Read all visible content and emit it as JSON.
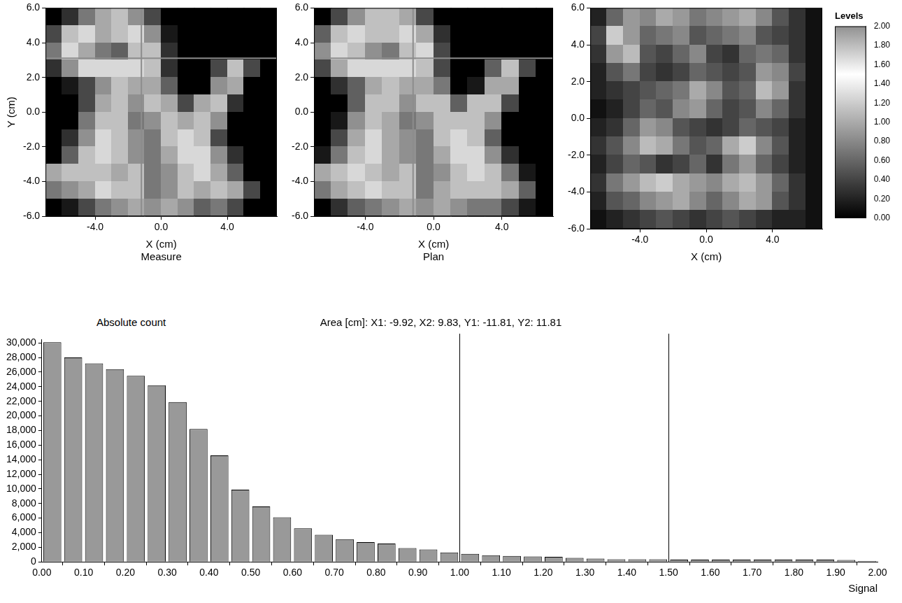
{
  "chart_data": [
    {
      "type": "heatmap",
      "caption": "Measure",
      "x_label": "X (cm)",
      "y_label": "Y (cm)",
      "xlim": [
        -7,
        7
      ],
      "ylim": [
        -6,
        6
      ],
      "xticks": [
        {
          "value": -4,
          "label": "-4.0"
        },
        {
          "value": 0,
          "label": "0.0"
        },
        {
          "value": 4,
          "label": "4.0"
        }
      ],
      "yticks": [
        {
          "value": -6,
          "label": "-6.0"
        },
        {
          "value": -4,
          "label": "-4.0"
        },
        {
          "value": -2,
          "label": "-2.0"
        },
        {
          "value": 0,
          "label": "0.0"
        },
        {
          "value": 2,
          "label": "2.0"
        },
        {
          "value": 4,
          "label": "4.0"
        },
        {
          "value": 6,
          "label": "6.0"
        }
      ],
      "crosshair": {
        "x": -1.2,
        "y": 3.1
      },
      "x": [
        -6.5,
        -5.5,
        -4.5,
        -3.5,
        -2.5,
        -1.5,
        -0.5,
        0.5,
        1.5,
        2.5,
        3.5,
        4.5,
        5.5,
        6.5
      ],
      "y": [
        5.5,
        4.5,
        3.5,
        2.5,
        1.5,
        0.5,
        -0.5,
        -1.5,
        -2.5,
        -3.5,
        -4.5,
        -5.5
      ],
      "values": [
        [
          0,
          0.2,
          0.5,
          0.7,
          0.8,
          0.6,
          0.3,
          0,
          0,
          0,
          0,
          0,
          0,
          0
        ],
        [
          0.3,
          0.8,
          0.9,
          0.7,
          0.8,
          0.9,
          0.6,
          0.1,
          0,
          0,
          0,
          0,
          0,
          0
        ],
        [
          0.5,
          0.9,
          0.7,
          0.5,
          0.4,
          0.8,
          0.8,
          0.2,
          0,
          0,
          0,
          0,
          0,
          0
        ],
        [
          0.2,
          0.6,
          0.9,
          0.9,
          0.9,
          0.9,
          0.8,
          0.2,
          0,
          0,
          0.3,
          0.8,
          0.3,
          0
        ],
        [
          0,
          0.1,
          0.3,
          0.6,
          0.8,
          0.7,
          0.7,
          0.4,
          0,
          0,
          0.6,
          0.7,
          0,
          0
        ],
        [
          0,
          0,
          0.3,
          0.7,
          0.8,
          0.6,
          0.8,
          0.7,
          0.3,
          0.7,
          0.8,
          0.2,
          0,
          0
        ],
        [
          0,
          0,
          0.5,
          0.8,
          0.8,
          0.5,
          0.6,
          0.8,
          0.7,
          0.8,
          0.6,
          0,
          0,
          0
        ],
        [
          0,
          0.2,
          0.6,
          0.9,
          0.8,
          0.6,
          0.5,
          0.8,
          0.9,
          0.8,
          0.3,
          0,
          0,
          0
        ],
        [
          0,
          0.4,
          0.8,
          0.9,
          0.8,
          0.6,
          0.5,
          0.7,
          0.9,
          0.9,
          0.6,
          0.2,
          0,
          0
        ],
        [
          0.7,
          0.8,
          0.8,
          0.8,
          0.7,
          0.8,
          0.5,
          0.6,
          0.8,
          0.9,
          0.7,
          0.4,
          0,
          0
        ],
        [
          0.5,
          0.6,
          0.7,
          0.9,
          0.8,
          0.8,
          0.5,
          0.6,
          0.8,
          0.7,
          0.8,
          0.7,
          0.3,
          0
        ],
        [
          0,
          0.1,
          0.3,
          0.5,
          0.6,
          0.7,
          0.6,
          0.7,
          0.6,
          0.4,
          0.5,
          0.3,
          0,
          0
        ]
      ]
    },
    {
      "type": "heatmap",
      "caption": "Plan",
      "x_label": "X (cm)",
      "xlim": [
        -7,
        7
      ],
      "ylim": [
        -6,
        6
      ],
      "xticks": [
        {
          "value": -4,
          "label": "-4.0"
        },
        {
          "value": 0,
          "label": "0.0"
        },
        {
          "value": 4,
          "label": "4.0"
        }
      ],
      "yticks": [
        {
          "value": -6,
          "label": "-6.0"
        },
        {
          "value": -4,
          "label": "-4.0"
        },
        {
          "value": -2,
          "label": "-2.0"
        },
        {
          "value": 0,
          "label": "0.0"
        },
        {
          "value": 2,
          "label": "2.0"
        },
        {
          "value": 4,
          "label": "4.0"
        },
        {
          "value": 6,
          "label": "6.0"
        }
      ],
      "crosshair": {
        "x": -1.2,
        "y": 3.1
      },
      "x": [
        -6.5,
        -5.5,
        -4.5,
        -3.5,
        -2.5,
        -1.5,
        -0.5,
        0.5,
        1.5,
        2.5,
        3.5,
        4.5,
        5.5,
        6.5
      ],
      "y": [
        5.5,
        4.5,
        3.5,
        2.5,
        1.5,
        0.5,
        -0.5,
        -1.5,
        -2.5,
        -3.5,
        -4.5,
        -5.5
      ],
      "values": [
        [
          0,
          0.3,
          0.6,
          0.8,
          0.8,
          0.7,
          0.3,
          0,
          0,
          0,
          0,
          0,
          0,
          0
        ],
        [
          0.4,
          0.8,
          0.9,
          0.8,
          0.8,
          0.9,
          0.7,
          0.2,
          0,
          0,
          0,
          0,
          0,
          0
        ],
        [
          0.6,
          0.9,
          0.8,
          0.6,
          0.5,
          0.8,
          0.9,
          0.3,
          0,
          0,
          0,
          0,
          0,
          0
        ],
        [
          0.3,
          0.7,
          0.9,
          0.9,
          0.9,
          0.9,
          0.8,
          0.3,
          0,
          0,
          0.4,
          0.8,
          0.3,
          0
        ],
        [
          0,
          0.2,
          0.4,
          0.7,
          0.8,
          0.7,
          0.7,
          0.5,
          0,
          0.1,
          0.7,
          0.7,
          0,
          0
        ],
        [
          0,
          0,
          0.4,
          0.8,
          0.8,
          0.6,
          0.8,
          0.8,
          0.4,
          0.8,
          0.8,
          0.3,
          0,
          0
        ],
        [
          0,
          0.1,
          0.6,
          0.8,
          0.7,
          0.5,
          0.6,
          0.8,
          0.8,
          0.8,
          0.6,
          0,
          0,
          0
        ],
        [
          0,
          0.3,
          0.7,
          0.9,
          0.7,
          0.6,
          0.5,
          0.8,
          0.9,
          0.8,
          0.4,
          0,
          0,
          0
        ],
        [
          0.1,
          0.5,
          0.8,
          0.9,
          0.7,
          0.6,
          0.5,
          0.7,
          0.9,
          0.9,
          0.6,
          0.2,
          0,
          0
        ],
        [
          0.7,
          0.8,
          0.9,
          0.8,
          0.7,
          0.8,
          0.5,
          0.6,
          0.8,
          0.9,
          0.8,
          0.5,
          0.1,
          0
        ],
        [
          0.5,
          0.7,
          0.8,
          0.9,
          0.8,
          0.8,
          0.5,
          0.7,
          0.8,
          0.8,
          0.8,
          0.7,
          0.4,
          0
        ],
        [
          0,
          0.2,
          0.4,
          0.5,
          0.6,
          0.7,
          0.6,
          0.7,
          0.6,
          0.5,
          0.5,
          0.3,
          0.1,
          0
        ]
      ]
    },
    {
      "type": "heatmap",
      "x_label": "X (cm)",
      "xlim": [
        -7,
        7
      ],
      "ylim": [
        -6,
        6
      ],
      "xticks": [
        {
          "value": -4,
          "label": "-4.0"
        },
        {
          "value": 0,
          "label": "0.0"
        },
        {
          "value": 4,
          "label": "4.0"
        }
      ],
      "yticks": [
        {
          "value": -6,
          "label": "-6.0"
        },
        {
          "value": -4,
          "label": "-4.0"
        },
        {
          "value": -2,
          "label": "-2.0"
        },
        {
          "value": 0,
          "label": "0.0"
        },
        {
          "value": 2,
          "label": "2.0"
        },
        {
          "value": 4,
          "label": "4.0"
        },
        {
          "value": 6,
          "label": "6.0"
        }
      ],
      "x": [
        -6.5,
        -5.5,
        -4.5,
        -3.5,
        -2.5,
        -1.5,
        -0.5,
        0.5,
        1.5,
        2.5,
        3.5,
        4.5,
        5.5,
        6.5
      ],
      "y": [
        5.5,
        4.5,
        3.5,
        2.5,
        1.5,
        0.5,
        -0.5,
        -1.5,
        -2.5,
        -3.5,
        -4.5,
        -5.5
      ],
      "values": [
        [
          0.2,
          0.6,
          0.9,
          0.8,
          1.0,
          0.9,
          0.7,
          0.8,
          0.9,
          1.0,
          0.8,
          0.5,
          0.3,
          0.1
        ],
        [
          0.4,
          1.2,
          0.9,
          0.6,
          0.7,
          0.8,
          0.5,
          0.6,
          0.7,
          0.8,
          0.5,
          0.4,
          0.3,
          0.1
        ],
        [
          0.3,
          0.9,
          1.1,
          0.5,
          0.4,
          0.6,
          0.8,
          0.4,
          0.3,
          0.6,
          0.7,
          0.6,
          0.3,
          0.1
        ],
        [
          0.2,
          0.5,
          0.7,
          0.4,
          0.3,
          0.4,
          0.6,
          0.5,
          0.4,
          0.5,
          0.9,
          0.8,
          0.4,
          0.1
        ],
        [
          0.2,
          0.3,
          0.4,
          0.5,
          0.6,
          0.7,
          1.0,
          0.8,
          0.5,
          0.6,
          1.1,
          0.9,
          0.3,
          0.1
        ],
        [
          0.1,
          0.2,
          0.4,
          0.6,
          0.5,
          0.8,
          0.9,
          0.6,
          0.4,
          0.5,
          0.8,
          0.6,
          0.3,
          0.1
        ],
        [
          0.2,
          0.3,
          0.6,
          0.9,
          0.8,
          0.5,
          0.4,
          0.3,
          0.4,
          0.6,
          0.5,
          0.4,
          0.2,
          0.1
        ],
        [
          0.3,
          0.5,
          0.8,
          1.1,
          1.0,
          0.7,
          0.5,
          0.6,
          1.0,
          1.2,
          0.8,
          0.5,
          0.2,
          0.1
        ],
        [
          0.2,
          0.4,
          0.6,
          0.5,
          0.3,
          0.4,
          0.6,
          0.3,
          0.7,
          0.9,
          0.6,
          0.4,
          0.2,
          0.1
        ],
        [
          0.3,
          0.7,
          0.9,
          1.1,
          1.2,
          1.0,
          0.9,
          0.8,
          1.0,
          1.1,
          0.9,
          0.6,
          0.3,
          0.1
        ],
        [
          0.2,
          0.5,
          0.6,
          0.8,
          0.9,
          1.0,
          0.8,
          0.6,
          0.8,
          1.0,
          0.9,
          0.5,
          0.3,
          0.1
        ],
        [
          0.1,
          0.2,
          0.3,
          0.4,
          0.5,
          0.4,
          0.3,
          0.4,
          0.5,
          0.4,
          0.3,
          0.2,
          0.2,
          0.1
        ]
      ],
      "colorbar": {
        "title": "Levels",
        "range": [
          0,
          2
        ],
        "ticks": [
          {
            "value": 0,
            "label": "0.00"
          },
          {
            "value": 0.2,
            "label": "0.20"
          },
          {
            "value": 0.4,
            "label": "0.40"
          },
          {
            "value": 0.6,
            "label": "0.60"
          },
          {
            "value": 0.8,
            "label": "0.80"
          },
          {
            "value": 1,
            "label": "1.00"
          },
          {
            "value": 1.2,
            "label": "1.20"
          },
          {
            "value": 1.4,
            "label": "1.40"
          },
          {
            "value": 1.6,
            "label": "1.60"
          },
          {
            "value": 1.8,
            "label": "1.80"
          },
          {
            "value": 2,
            "label": "2.00"
          }
        ]
      }
    },
    {
      "type": "bar",
      "title": "Area [cm]: X1: -9.92, X2: 9.83, Y1: -11.81, Y2: 11.81",
      "y_label": "Absolute count",
      "x_label": "Signal",
      "color": "#999999",
      "bins": [
        0,
        0.05,
        0.1,
        0.15,
        0.2,
        0.25,
        0.3,
        0.35,
        0.4,
        0.45,
        0.5,
        0.55,
        0.6,
        0.65,
        0.7,
        0.75,
        0.8,
        0.85,
        0.9,
        0.95,
        1.0,
        1.05,
        1.1,
        1.15,
        1.2,
        1.25,
        1.3,
        1.35,
        1.4,
        1.45,
        1.5,
        1.55,
        1.6,
        1.65,
        1.7,
        1.75,
        1.8,
        1.85,
        1.9,
        1.95,
        2.0
      ],
      "values": [
        30100,
        28000,
        27200,
        26400,
        25500,
        24200,
        21900,
        18200,
        14600,
        9900,
        7600,
        6100,
        4600,
        3700,
        3100,
        2700,
        2500,
        1900,
        1700,
        1300,
        1100,
        900,
        800,
        750,
        700,
        550,
        450,
        350,
        350,
        350,
        300,
        300,
        300,
        300,
        300,
        300,
        300,
        300,
        250,
        150
      ],
      "thresholds": [
        1.0,
        1.5
      ],
      "xlim": [
        0,
        2
      ],
      "xticks": [
        {
          "value": 0,
          "label": "0.00"
        },
        {
          "value": 0.1,
          "label": "0.10"
        },
        {
          "value": 0.2,
          "label": "0.20"
        },
        {
          "value": 0.3,
          "label": "0.30"
        },
        {
          "value": 0.4,
          "label": "0.40"
        },
        {
          "value": 0.5,
          "label": "0.50"
        },
        {
          "value": 0.6,
          "label": "0.60"
        },
        {
          "value": 0.7,
          "label": "0.70"
        },
        {
          "value": 0.8,
          "label": "0.80"
        },
        {
          "value": 0.9,
          "label": "0.90"
        },
        {
          "value": 1,
          "label": "1.00"
        },
        {
          "value": 1.1,
          "label": "1.10"
        },
        {
          "value": 1.2,
          "label": "1.20"
        },
        {
          "value": 1.3,
          "label": "1.30"
        },
        {
          "value": 1.4,
          "label": "1.40"
        },
        {
          "value": 1.5,
          "label": "1.50"
        },
        {
          "value": 1.6,
          "label": "1.60"
        },
        {
          "value": 1.7,
          "label": "1.70"
        },
        {
          "value": 1.8,
          "label": "1.80"
        },
        {
          "value": 1.9,
          "label": "1.90"
        },
        {
          "value": 2,
          "label": "2.00"
        }
      ],
      "ylim": [
        0,
        30500
      ],
      "yticks": [
        0,
        {
          "value": 2000,
          "label": "2,000"
        },
        {
          "value": 4000,
          "label": "4,000"
        },
        {
          "value": 6000,
          "label": "6,000"
        },
        {
          "value": 8000,
          "label": "8,000"
        },
        {
          "value": 10000,
          "label": "10,000"
        },
        {
          "value": 12000,
          "label": "12,000"
        },
        {
          "value": 14000,
          "label": "14,000"
        },
        {
          "value": 16000,
          "label": "16,000"
        },
        {
          "value": 18000,
          "label": "18,000"
        },
        {
          "value": 20000,
          "label": "20,000"
        },
        {
          "value": 22000,
          "label": "22,000"
        },
        {
          "value": 24000,
          "label": "24,000"
        },
        {
          "value": 26000,
          "label": "26,000"
        },
        {
          "value": 28000,
          "label": "28,000"
        },
        {
          "value": 30000,
          "label": "30,000"
        }
      ]
    }
  ]
}
